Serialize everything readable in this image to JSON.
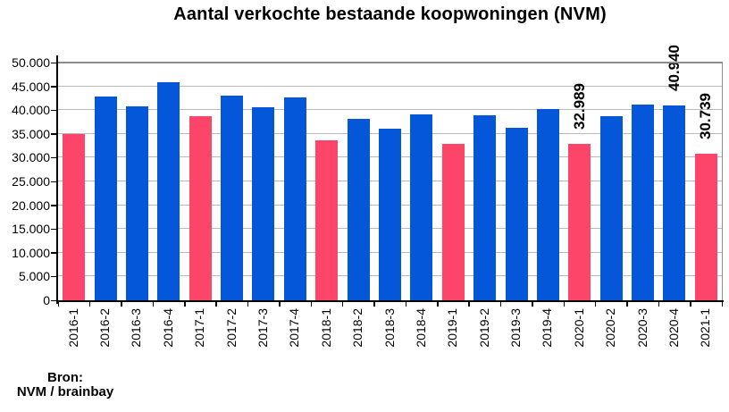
{
  "title": "Aantal verkochte bestaande koopwoningen (NVM)",
  "source": {
    "line1": "Bron:",
    "line2": "NVM / brainbay"
  },
  "colors": {
    "blue": "#0457D8",
    "pink": "#FC4568",
    "gridline": "#b9b9b9",
    "plot_border": "#8c8c8c",
    "axis": "#000000"
  },
  "chart_data": {
    "type": "bar",
    "title": "Aantal verkochte bestaande koopwoningen (NVM)",
    "xlabel": "",
    "ylabel": "",
    "ylim": [
      0,
      50000
    ],
    "ytick_interval": 5000,
    "ytick_labels": [
      "0",
      "5.000",
      "10.000",
      "15.000",
      "20.000",
      "25.000",
      "30.000",
      "35.000",
      "40.000",
      "45.000",
      "50.000"
    ],
    "grid": true,
    "legend": false,
    "color_rule": "first-quarter bars pink, other quarters blue",
    "categories": [
      "2016-1",
      "2016-2",
      "2016-3",
      "2016-4",
      "2017-1",
      "2017-2",
      "2017-3",
      "2017-4",
      "2018-1",
      "2018-2",
      "2018-3",
      "2018-4",
      "2019-1",
      "2019-2",
      "2019-3",
      "2019-4",
      "2020-1",
      "2020-2",
      "2020-3",
      "2020-4",
      "2021-1"
    ],
    "bars": [
      {
        "label": "2016-1",
        "value": 35000,
        "color": "pink",
        "annotation": ""
      },
      {
        "label": "2016-2",
        "value": 42900,
        "color": "blue",
        "annotation": ""
      },
      {
        "label": "2016-3",
        "value": 40800,
        "color": "blue",
        "annotation": ""
      },
      {
        "label": "2016-4",
        "value": 45800,
        "color": "blue",
        "annotation": ""
      },
      {
        "label": "2017-1",
        "value": 38700,
        "color": "pink",
        "annotation": ""
      },
      {
        "label": "2017-2",
        "value": 43000,
        "color": "blue",
        "annotation": ""
      },
      {
        "label": "2017-3",
        "value": 40600,
        "color": "blue",
        "annotation": ""
      },
      {
        "label": "2017-4",
        "value": 42600,
        "color": "blue",
        "annotation": ""
      },
      {
        "label": "2018-1",
        "value": 33700,
        "color": "pink",
        "annotation": ""
      },
      {
        "label": "2018-2",
        "value": 38200,
        "color": "blue",
        "annotation": ""
      },
      {
        "label": "2018-3",
        "value": 36000,
        "color": "blue",
        "annotation": ""
      },
      {
        "label": "2018-4",
        "value": 39100,
        "color": "blue",
        "annotation": ""
      },
      {
        "label": "2019-1",
        "value": 32900,
        "color": "pink",
        "annotation": ""
      },
      {
        "label": "2019-2",
        "value": 39000,
        "color": "blue",
        "annotation": ""
      },
      {
        "label": "2019-3",
        "value": 36300,
        "color": "blue",
        "annotation": ""
      },
      {
        "label": "2019-4",
        "value": 40200,
        "color": "blue",
        "annotation": ""
      },
      {
        "label": "2020-1",
        "value": 32989,
        "color": "pink",
        "annotation": "32.989"
      },
      {
        "label": "2020-2",
        "value": 38700,
        "color": "blue",
        "annotation": ""
      },
      {
        "label": "2020-3",
        "value": 41100,
        "color": "blue",
        "annotation": ""
      },
      {
        "label": "2020-4",
        "value": 40940,
        "color": "blue",
        "annotation": "40.940"
      },
      {
        "label": "2021-1",
        "value": 30739,
        "color": "pink",
        "annotation": "30.739"
      }
    ],
    "annotations": [
      {
        "category": "2020-1",
        "label": "32.989"
      },
      {
        "category": "2020-4",
        "label": "40.940"
      },
      {
        "category": "2021-1",
        "label": "30.739"
      }
    ]
  }
}
